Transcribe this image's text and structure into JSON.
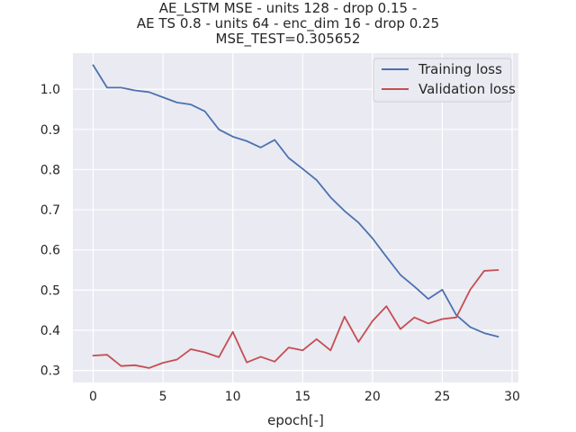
{
  "chart_data": {
    "type": "line",
    "title_lines": [
      "AE_LSTM MSE - units 128 - drop 0.15 -",
      "AE TS 0.8 - units 64 - enc_dim 16 - drop 0.25",
      "MSE_TEST=0.305652"
    ],
    "xlabel": "epoch[-]",
    "ylabel": "",
    "xlim": [
      -1.45,
      30.45
    ],
    "ylim": [
      0.27,
      1.09
    ],
    "xticks": [
      0,
      5,
      10,
      15,
      20,
      25,
      30
    ],
    "xtick_labels": [
      "0",
      "5",
      "10",
      "15",
      "20",
      "25",
      "30"
    ],
    "yticks": [
      0.3,
      0.4,
      0.5,
      0.6,
      0.7,
      0.8,
      0.9,
      1.0
    ],
    "ytick_labels": [
      "0.3",
      "0.4",
      "0.5",
      "0.6",
      "0.7",
      "0.8",
      "0.9",
      "1.0"
    ],
    "grid": true,
    "legend_position": "top-right",
    "x": [
      0,
      1,
      2,
      3,
      4,
      5,
      6,
      7,
      8,
      9,
      10,
      11,
      12,
      13,
      14,
      15,
      16,
      17,
      18,
      19,
      20,
      21,
      22,
      23,
      24,
      25,
      26,
      27,
      28,
      29
    ],
    "series": [
      {
        "name": "Training loss",
        "color": "#4c72b0",
        "values": [
          1.06,
          1.004,
          1.004,
          0.997,
          0.993,
          0.98,
          0.967,
          0.962,
          0.945,
          0.9,
          0.882,
          0.871,
          0.855,
          0.874,
          0.829,
          0.802,
          0.774,
          0.731,
          0.697,
          0.668,
          0.629,
          0.583,
          0.538,
          0.509,
          0.478,
          0.501,
          0.438,
          0.408,
          0.393,
          0.384
        ]
      },
      {
        "name": "Validation loss",
        "color": "#c44e52",
        "values": [
          0.337,
          0.339,
          0.311,
          0.313,
          0.306,
          0.319,
          0.327,
          0.353,
          0.345,
          0.333,
          0.396,
          0.32,
          0.334,
          0.322,
          0.357,
          0.35,
          0.378,
          0.35,
          0.434,
          0.371,
          0.423,
          0.46,
          0.403,
          0.432,
          0.417,
          0.428,
          0.432,
          0.501,
          0.548,
          0.55
        ]
      }
    ]
  }
}
